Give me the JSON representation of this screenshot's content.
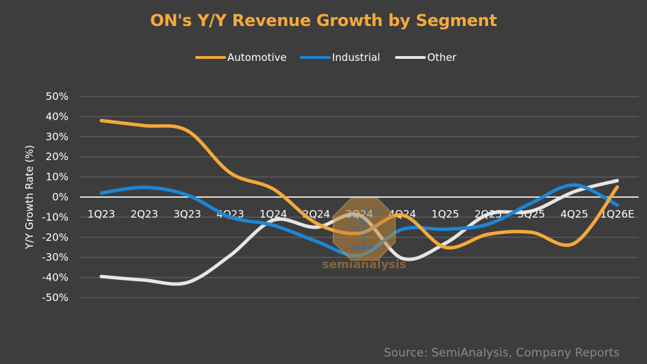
{
  "chart_data": {
    "type": "line",
    "title": "ON's Y/Y Revenue Growth by Segment",
    "xlabel": "",
    "ylabel": "Y/Y Growth Rate (%)",
    "categories": [
      "1Q23",
      "2Q23",
      "3Q23",
      "4Q23",
      "1Q24",
      "2Q24",
      "3Q24",
      "4Q24",
      "1Q25",
      "2Q25",
      "3Q25",
      "4Q25",
      "1Q26E"
    ],
    "ylim": [
      -50,
      50
    ],
    "yticks": [
      50,
      40,
      30,
      20,
      10,
      0,
      -10,
      -20,
      -30,
      -40,
      -50
    ],
    "ytick_labels": [
      "50%",
      "40%",
      "30%",
      "20%",
      "10%",
      "0%",
      "-10%",
      "-20%",
      "-30%",
      "-40%",
      "-50%"
    ],
    "grid": true,
    "legend_position": "top-center",
    "smooth": true,
    "series": [
      {
        "name": "Automotive",
        "color": "#f5a93a",
        "values": [
          38,
          35.5,
          33,
          12,
          4,
          -13,
          -18,
          -9,
          -25,
          -18.5,
          -17.5,
          -23,
          5
        ]
      },
      {
        "name": "Industrial",
        "color": "#1d86d4",
        "values": [
          2,
          4.8,
          1,
          -10,
          -14,
          -22,
          -29,
          -16,
          -16,
          -13.5,
          -3,
          6,
          -4
        ]
      },
      {
        "name": "Other",
        "color": "#e6e6e6",
        "values": [
          -39.5,
          -41.3,
          -42.5,
          -29,
          -11.5,
          -15,
          -9,
          -30.5,
          -23,
          -8.5,
          -7,
          2.7,
          8.2
        ]
      }
    ],
    "source": "Source: SemiAnalysis, Company Reports",
    "watermark": "semianalysis",
    "title_color": "#f5a93a"
  }
}
